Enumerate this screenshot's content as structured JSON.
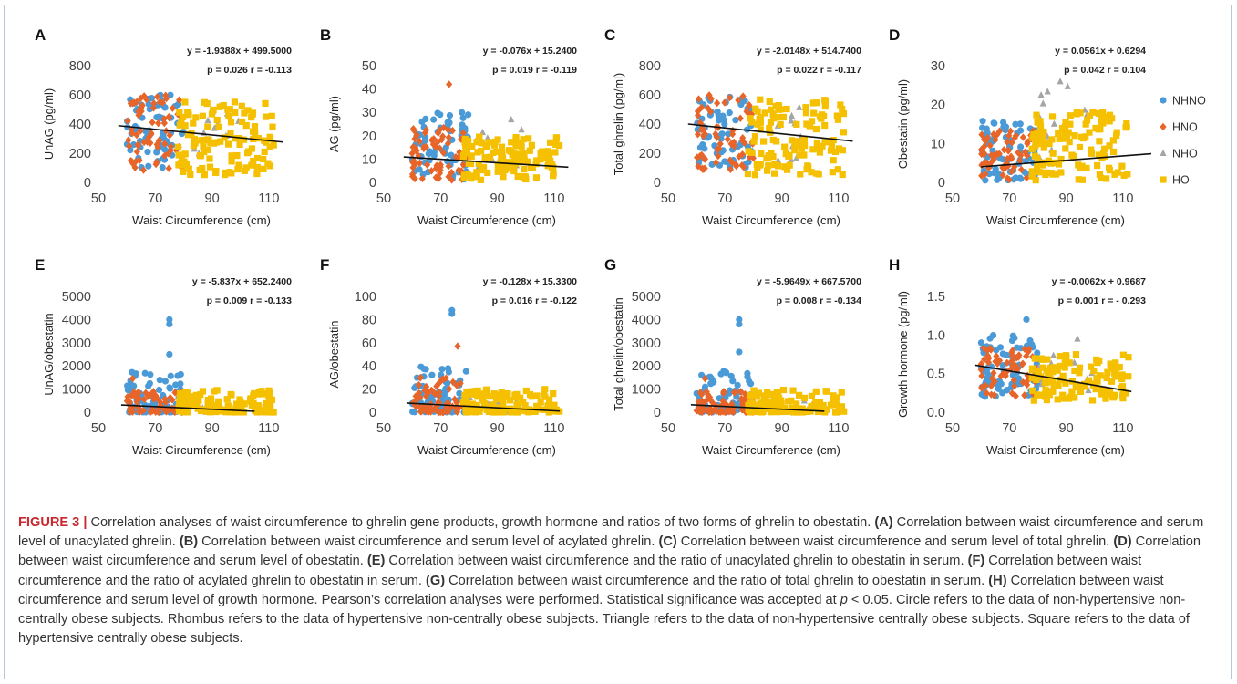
{
  "legend": [
    {
      "name": "NHNO",
      "shape": "circle",
      "color": "#4a9ad8"
    },
    {
      "name": "HNO",
      "shape": "diamond",
      "color": "#e8652a"
    },
    {
      "name": "NHO",
      "shape": "triangle",
      "color": "#a5a5a5"
    },
    {
      "name": "HO",
      "shape": "square",
      "color": "#f5c000"
    }
  ],
  "chart_data": [
    {
      "type": "scatter",
      "panel": "A",
      "xlabel": "Waist Circumference (cm)",
      "ylabel": "UnAG (pg/ml)",
      "xlim": [
        50,
        120
      ],
      "xticks": [
        50,
        70,
        90,
        110
      ],
      "ylim": [
        0,
        800
      ],
      "yticks": [
        0,
        200,
        400,
        600,
        800
      ],
      "equation": "y = -1.9388x + 499.5000",
      "stats": "p = 0.026 r = -0.113",
      "trend": {
        "slope": -1.9388,
        "intercept": 499.5,
        "x": [
          57,
          115
        ]
      },
      "series": [
        {
          "name": "NHNO",
          "x_range": [
            60,
            80
          ],
          "y_range": [
            100,
            600
          ],
          "n": 70
        },
        {
          "name": "HNO",
          "x_range": [
            60,
            80
          ],
          "y_range": [
            80,
            600
          ],
          "n": 70
        },
        {
          "name": "NHO",
          "x_range": [
            80,
            100
          ],
          "y_range": [
            150,
            550
          ],
          "n": 12
        },
        {
          "name": "HO",
          "x_range": [
            78,
            112
          ],
          "y_range": [
            50,
            560
          ],
          "n": 120
        }
      ]
    },
    {
      "type": "scatter",
      "panel": "B",
      "xlabel": "Waist Circumference (cm)",
      "ylabel": "AG (pg/ml)",
      "xlim": [
        50,
        120
      ],
      "xticks": [
        50,
        70,
        90,
        110
      ],
      "ylim": [
        0,
        50
      ],
      "yticks": [
        0,
        10,
        20,
        30,
        40,
        50
      ],
      "equation": "y = -0.076x + 15.2400",
      "stats": "p = 0.019 r = -0.119",
      "trend": {
        "slope": -0.076,
        "intercept": 15.24,
        "x": [
          57,
          115
        ]
      },
      "series": [
        {
          "name": "NHNO",
          "x_range": [
            60,
            80
          ],
          "y_range": [
            1,
            30
          ],
          "n": 70
        },
        {
          "name": "HNO",
          "x_range": [
            60,
            80
          ],
          "y_range": [
            1,
            25
          ],
          "n": 70,
          "extra": [
            [
              73,
              42
            ]
          ]
        },
        {
          "name": "NHO",
          "x_range": [
            80,
            100
          ],
          "y_range": [
            2,
            28
          ],
          "n": 12
        },
        {
          "name": "HO",
          "x_range": [
            78,
            112
          ],
          "y_range": [
            1,
            20
          ],
          "n": 120
        }
      ]
    },
    {
      "type": "scatter",
      "panel": "C",
      "xlabel": "Waist Circumference (cm)",
      "ylabel": "Total ghrelin (pg/ml)",
      "xlim": [
        50,
        120
      ],
      "xticks": [
        50,
        70,
        90,
        110
      ],
      "ylim": [
        0,
        800
      ],
      "yticks": [
        0,
        200,
        400,
        600,
        800
      ],
      "equation": "y = -2.0148x + 514.7400",
      "stats": "p = 0.022 r = -0.117",
      "trend": {
        "slope": -2.0148,
        "intercept": 514.74,
        "x": [
          57,
          115
        ]
      },
      "series": [
        {
          "name": "NHNO",
          "x_range": [
            60,
            80
          ],
          "y_range": [
            100,
            600
          ],
          "n": 70
        },
        {
          "name": "HNO",
          "x_range": [
            60,
            80
          ],
          "y_range": [
            80,
            600
          ],
          "n": 70
        },
        {
          "name": "NHO",
          "x_range": [
            80,
            100
          ],
          "y_range": [
            150,
            560
          ],
          "n": 12
        },
        {
          "name": "HO",
          "x_range": [
            78,
            112
          ],
          "y_range": [
            50,
            570
          ],
          "n": 120
        }
      ]
    },
    {
      "type": "scatter",
      "panel": "D",
      "xlabel": "Waist Circumference (cm)",
      "ylabel": "Obestatin (pg/ml)",
      "xlim": [
        50,
        120
      ],
      "xticks": [
        50,
        70,
        90,
        110
      ],
      "ylim": [
        0,
        30
      ],
      "yticks": [
        0,
        10,
        20,
        30
      ],
      "equation": "y = 0.0561x + 0.6294",
      "stats": "p = 0.042 r = 0.104",
      "trend": {
        "slope": 0.0561,
        "intercept": 0.6294,
        "x": [
          60,
          120
        ]
      },
      "series": [
        {
          "name": "NHNO",
          "x_range": [
            60,
            80
          ],
          "y_range": [
            0.5,
            16
          ],
          "n": 70
        },
        {
          "name": "HNO",
          "x_range": [
            60,
            80
          ],
          "y_range": [
            0.5,
            14
          ],
          "n": 70
        },
        {
          "name": "NHO",
          "x_range": [
            80,
            100
          ],
          "y_range": [
            2,
            26
          ],
          "n": 14
        },
        {
          "name": "HO",
          "x_range": [
            78,
            112
          ],
          "y_range": [
            0.5,
            18
          ],
          "n": 120
        }
      ]
    },
    {
      "type": "scatter",
      "panel": "E",
      "xlabel": "Waist Circumference (cm)",
      "ylabel": "UnAG/obestatin",
      "xlim": [
        50,
        120
      ],
      "xticks": [
        50,
        70,
        90,
        110
      ],
      "ylim": [
        0,
        5000
      ],
      "yticks": [
        0,
        1000,
        2000,
        3000,
        4000,
        5000
      ],
      "equation": "y = -5.837x + 652.2400",
      "stats": "p = 0.009 r = -0.133",
      "trend": {
        "slope": -5.837,
        "intercept": 652.24,
        "x": [
          58,
          105
        ]
      },
      "series": [
        {
          "name": "NHNO",
          "x_range": [
            60,
            80
          ],
          "y_range": [
            0,
            1800
          ],
          "n": 70,
          "extra": [
            [
              75,
              4000
            ],
            [
              75,
              3800
            ],
            [
              75,
              2500
            ]
          ]
        },
        {
          "name": "HNO",
          "x_range": [
            60,
            80
          ],
          "y_range": [
            0,
            900
          ],
          "n": 70,
          "extra": [
            [
              62,
              1450
            ]
          ]
        },
        {
          "name": "NHO",
          "x_range": [
            80,
            100
          ],
          "y_range": [
            0,
            500
          ],
          "n": 12
        },
        {
          "name": "HO",
          "x_range": [
            78,
            112
          ],
          "y_range": [
            0,
            1000
          ],
          "n": 120
        }
      ]
    },
    {
      "type": "scatter",
      "panel": "F",
      "xlabel": "Waist Circumference (cm)",
      "ylabel": "AG/obestatin",
      "xlim": [
        50,
        120
      ],
      "xticks": [
        50,
        70,
        90,
        110
      ],
      "ylim": [
        0,
        100
      ],
      "yticks": [
        0,
        20,
        40,
        60,
        80,
        100
      ],
      "equation": "y = -0.128x + 15.3300",
      "stats": "p = 0.016 r = -0.122",
      "trend": {
        "slope": -0.128,
        "intercept": 15.33,
        "x": [
          58,
          112
        ]
      },
      "series": [
        {
          "name": "NHNO",
          "x_range": [
            60,
            80
          ],
          "y_range": [
            0,
            40
          ],
          "n": 70,
          "extra": [
            [
              74,
              88
            ],
            [
              74,
              85
            ]
          ]
        },
        {
          "name": "HNO",
          "x_range": [
            60,
            80
          ],
          "y_range": [
            0,
            30
          ],
          "n": 70,
          "extra": [
            [
              76,
              57
            ],
            [
              63,
              30
            ]
          ]
        },
        {
          "name": "NHO",
          "x_range": [
            80,
            100
          ],
          "y_range": [
            0,
            15
          ],
          "n": 12
        },
        {
          "name": "HO",
          "x_range": [
            78,
            112
          ],
          "y_range": [
            0,
            20
          ],
          "n": 120
        }
      ]
    },
    {
      "type": "scatter",
      "panel": "G",
      "xlabel": "Waist Circumference (cm)",
      "ylabel": "Total ghrelin/obestatin",
      "xlim": [
        50,
        120
      ],
      "xticks": [
        50,
        70,
        90,
        110
      ],
      "ylim": [
        0,
        5000
      ],
      "yticks": [
        0,
        1000,
        2000,
        3000,
        4000,
        5000
      ],
      "equation": "y = -5.9649x + 667.5700",
      "stats": "p = 0.008 r = -0.134",
      "trend": {
        "slope": -5.9649,
        "intercept": 667.57,
        "x": [
          58,
          105
        ]
      },
      "series": [
        {
          "name": "NHNO",
          "x_range": [
            60,
            80
          ],
          "y_range": [
            0,
            1800
          ],
          "n": 70,
          "extra": [
            [
              75,
              4000
            ],
            [
              75,
              3800
            ],
            [
              75,
              2600
            ]
          ]
        },
        {
          "name": "HNO",
          "x_range": [
            60,
            80
          ],
          "y_range": [
            0,
            900
          ],
          "n": 70,
          "extra": [
            [
              63,
              1450
            ]
          ]
        },
        {
          "name": "NHO",
          "x_range": [
            80,
            100
          ],
          "y_range": [
            0,
            500
          ],
          "n": 12
        },
        {
          "name": "HO",
          "x_range": [
            78,
            112
          ],
          "y_range": [
            0,
            1000
          ],
          "n": 120
        }
      ]
    },
    {
      "type": "scatter",
      "panel": "H",
      "xlabel": "Waist Circumference (cm)",
      "ylabel": "Growth hormone (pg/ml)",
      "xlim": [
        50,
        120
      ],
      "xticks": [
        50,
        70,
        90,
        110
      ],
      "ylim": [
        0,
        1.5
      ],
      "yticks": [
        0,
        0.5,
        1.0,
        1.5
      ],
      "equation": "y = -0.0062x + 0.9687",
      "stats": "p = 0.001 r = - 0.293",
      "trend": {
        "slope": -0.0062,
        "intercept": 0.9687,
        "x": [
          58,
          113
        ]
      },
      "series": [
        {
          "name": "NHNO",
          "x_range": [
            60,
            80
          ],
          "y_range": [
            0.2,
            1.0
          ],
          "n": 70,
          "extra": [
            [
              76,
              1.2
            ]
          ]
        },
        {
          "name": "HNO",
          "x_range": [
            60,
            80
          ],
          "y_range": [
            0.2,
            0.85
          ],
          "n": 70
        },
        {
          "name": "NHO",
          "x_range": [
            80,
            100
          ],
          "y_range": [
            0.25,
            0.95
          ],
          "n": 12
        },
        {
          "name": "HO",
          "x_range": [
            78,
            112
          ],
          "y_range": [
            0.15,
            0.75
          ],
          "n": 120
        }
      ]
    }
  ],
  "caption": {
    "figure_label": "FIGURE 3 |",
    "intro": " Correlation analyses of waist circumference to ghrelin gene products, growth hormone and ratios of two forms of ghrelin to obestatin. ",
    "items": [
      {
        "tag": "(A)",
        "text": " Correlation between waist circumference and serum level of unacylated ghrelin. "
      },
      {
        "tag": "(B)",
        "text": " Correlation between waist circumference and serum level of acylated ghrelin. "
      },
      {
        "tag": "(C)",
        "text": " Correlation between waist circumference and serum level of total ghrelin. "
      },
      {
        "tag": "(D)",
        "text": " Correlation between waist circumference and serum level of obestatin. "
      },
      {
        "tag": "(E)",
        "text": " Correlation between waist circumference and the ratio of unacylated ghrelin to obestatin in serum. "
      },
      {
        "tag": "(F)",
        "text": " Correlation between waist circumference and the ratio of acylated ghrelin to obestatin in serum. "
      },
      {
        "tag": "(G)",
        "text": " Correlation between waist circumference and the ratio of total ghrelin to obestatin in serum. "
      },
      {
        "tag": "(H)",
        "text": " Correlation between waist circumference and serum level of growth hormone. "
      }
    ],
    "sig_pre": "Pearson’s correlation analyses were performed. Statistical significance was accepted at ",
    "sig_var": "p",
    "sig_post": " < 0.05. Circle refers to the data of non-hypertensive non-centrally obese subjects. Rhombus refers to the data of hypertensive non-centrally obese subjects. Triangle refers to the data of non-hypertensive centrally obese subjects. Square refers to the data of hypertensive centrally obese subjects."
  }
}
